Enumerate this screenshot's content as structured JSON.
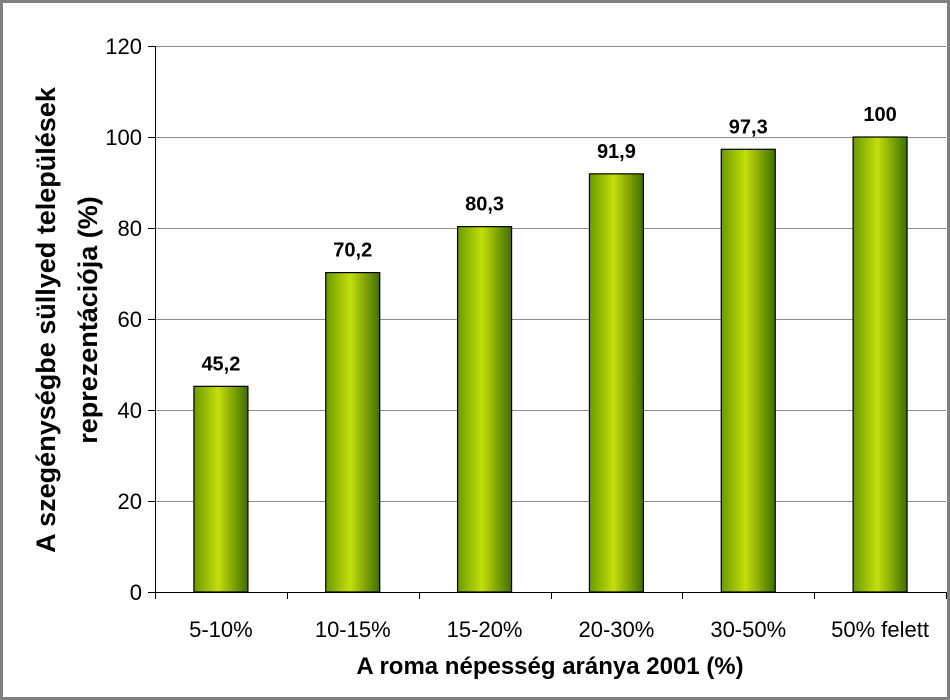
{
  "chart_data": {
    "type": "bar",
    "categories": [
      "5-10%",
      "10-15%",
      "15-20%",
      "20-30%",
      "30-50%",
      "50% felett"
    ],
    "values": [
      45.2,
      70.2,
      80.3,
      91.9,
      97.3,
      100
    ],
    "data_labels": [
      "45,2",
      "70,2",
      "80,3",
      "91,9",
      "97,3",
      "100"
    ],
    "xlabel": "A roma népesség aránya 2001 (%)",
    "ylabel": [
      "A szegénységbe süllyed települések",
      "reprezentációja (%)"
    ],
    "ylim": [
      0,
      120
    ],
    "yticks": [
      0,
      20,
      40,
      60,
      80,
      100,
      120
    ],
    "grid": true
  },
  "colors": {
    "frame": "#808080",
    "grid": "#8c8c8c",
    "axis": "#000000",
    "bar_outline": "#000000",
    "bar_gradient": [
      "#6b9a00",
      "#c3df0a",
      "#3f6e00"
    ]
  }
}
